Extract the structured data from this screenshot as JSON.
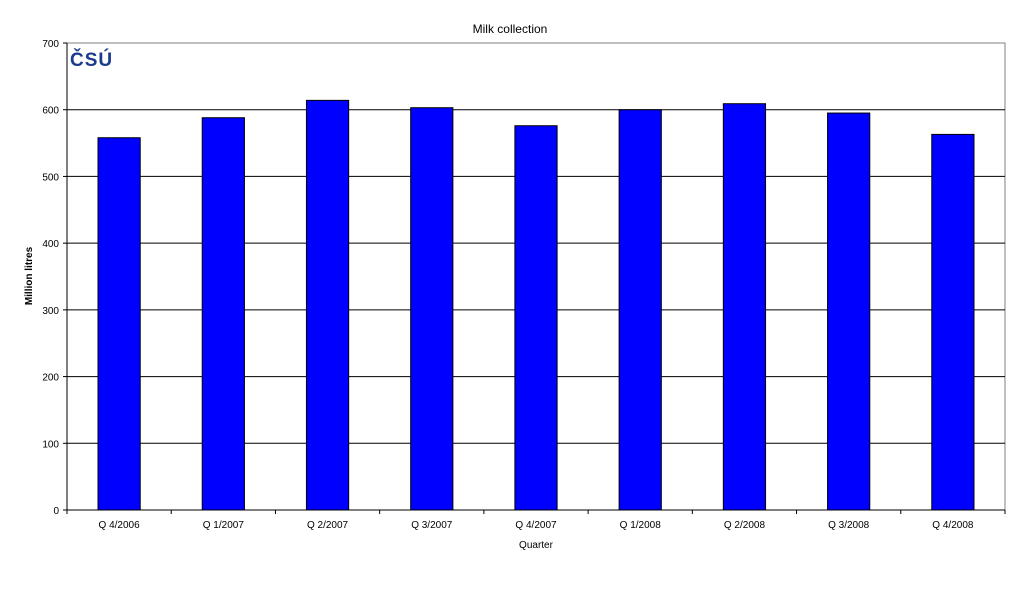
{
  "chart_data": {
    "type": "bar",
    "title": "Milk collection",
    "xlabel": "Quarter",
    "ylabel": "Million litres",
    "categories": [
      "Q 4/2006",
      "Q 1/2007",
      "Q 2/2007",
      "Q 3/2007",
      "Q 4/2007",
      "Q 1/2008",
      "Q 2/2008",
      "Q 3/2008",
      "Q 4/2008"
    ],
    "values": [
      558,
      588,
      614,
      603,
      576,
      600,
      609,
      595,
      563
    ],
    "ylim": [
      0,
      700
    ],
    "yticks": [
      0,
      100,
      200,
      300,
      400,
      500,
      600,
      700
    ],
    "grid": true,
    "bar_color": "#0000ff",
    "logo_text": "ČSÚ"
  }
}
